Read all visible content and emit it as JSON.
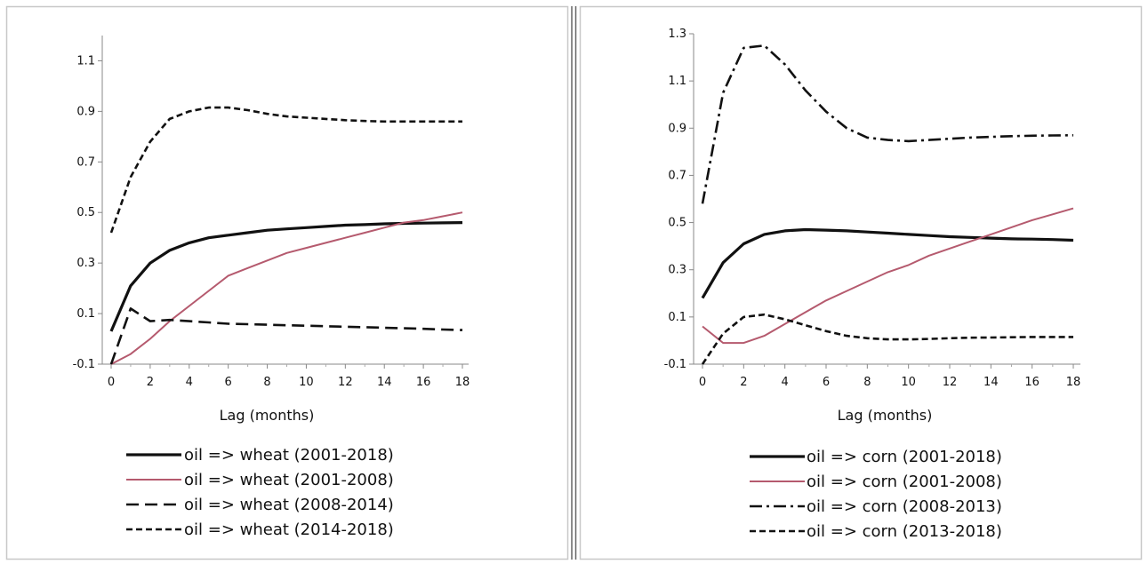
{
  "chart_data": [
    {
      "type": "line",
      "xlabel": "Lag (months)",
      "ylabel": "",
      "xlim": [
        0,
        18
      ],
      "ylim": [
        -0.1,
        1.2
      ],
      "xticks": [
        "0",
        "2",
        "4",
        "6",
        "8",
        "10",
        "12",
        "14",
        "16",
        "18"
      ],
      "yticks": [
        "-0.1",
        "0.1",
        "0.3",
        "0.5",
        "0.7",
        "0.9",
        "1.1"
      ],
      "grid": false,
      "legend_position": "bottom",
      "series": [
        {
          "name": "oil => wheat (2001-2018)",
          "color": "#111111",
          "style": "solid-thick",
          "x": [
            0,
            1,
            2,
            3,
            4,
            5,
            6,
            7,
            8,
            9,
            10,
            11,
            12,
            13,
            14,
            15,
            16,
            17,
            18
          ],
          "y": [
            0.03,
            0.21,
            0.3,
            0.35,
            0.38,
            0.4,
            0.41,
            0.42,
            0.43,
            0.435,
            0.44,
            0.445,
            0.45,
            0.452,
            0.455,
            0.457,
            0.458,
            0.459,
            0.46
          ]
        },
        {
          "name": "oil => wheat (2001-2008)",
          "color": "#b55a6e",
          "style": "solid",
          "x": [
            0,
            1,
            2,
            3,
            4,
            5,
            6,
            7,
            8,
            9,
            10,
            11,
            12,
            13,
            14,
            15,
            16,
            17,
            18
          ],
          "y": [
            -0.1,
            -0.06,
            0.0,
            0.07,
            0.13,
            0.19,
            0.25,
            0.28,
            0.31,
            0.34,
            0.36,
            0.38,
            0.4,
            0.42,
            0.44,
            0.46,
            0.47,
            0.485,
            0.5
          ]
        },
        {
          "name": "oil => wheat (2008-2014)",
          "color": "#111111",
          "style": "long-dash",
          "x": [
            0,
            1,
            2,
            3,
            4,
            5,
            6,
            7,
            8,
            9,
            10,
            11,
            12,
            13,
            14,
            15,
            16,
            17,
            18
          ],
          "y": [
            -0.1,
            0.12,
            0.07,
            0.075,
            0.07,
            0.065,
            0.06,
            0.058,
            0.056,
            0.054,
            0.052,
            0.05,
            0.048,
            0.046,
            0.044,
            0.042,
            0.04,
            0.037,
            0.035
          ]
        },
        {
          "name": "oil => wheat (2014-2018)",
          "color": "#111111",
          "style": "short-dash",
          "x": [
            0,
            1,
            2,
            3,
            4,
            5,
            6,
            7,
            8,
            9,
            10,
            11,
            12,
            13,
            14,
            15,
            16,
            17,
            18
          ],
          "y": [
            0.42,
            0.64,
            0.78,
            0.87,
            0.9,
            0.915,
            0.915,
            0.905,
            0.89,
            0.88,
            0.875,
            0.87,
            0.865,
            0.862,
            0.86,
            0.86,
            0.86,
            0.86,
            0.86
          ]
        }
      ]
    },
    {
      "type": "line",
      "xlabel": "Lag (months)",
      "ylabel": "",
      "xlim": [
        0,
        18
      ],
      "ylim": [
        -0.1,
        1.3
      ],
      "xticks": [
        "0",
        "2",
        "4",
        "6",
        "8",
        "10",
        "12",
        "14",
        "16",
        "18"
      ],
      "yticks": [
        "-0.1",
        "0.1",
        "0.3",
        "0.5",
        "0.7",
        "0.9",
        "1.1",
        "1.3"
      ],
      "grid": false,
      "legend_position": "bottom",
      "series": [
        {
          "name": "oil => corn (2001-2018)",
          "color": "#111111",
          "style": "solid-thick",
          "x": [
            0,
            1,
            2,
            3,
            4,
            5,
            6,
            7,
            8,
            9,
            10,
            11,
            12,
            13,
            14,
            15,
            16,
            17,
            18
          ],
          "y": [
            0.18,
            0.33,
            0.41,
            0.45,
            0.465,
            0.47,
            0.468,
            0.465,
            0.46,
            0.455,
            0.45,
            0.445,
            0.44,
            0.437,
            0.434,
            0.431,
            0.43,
            0.428,
            0.425
          ]
        },
        {
          "name": "oil => corn (2001-2008)",
          "color": "#b55a6e",
          "style": "solid",
          "x": [
            0,
            1,
            2,
            3,
            4,
            5,
            6,
            7,
            8,
            9,
            10,
            11,
            12,
            13,
            14,
            15,
            16,
            17,
            18
          ],
          "y": [
            0.06,
            -0.01,
            -0.01,
            0.02,
            0.07,
            0.12,
            0.17,
            0.21,
            0.25,
            0.29,
            0.32,
            0.36,
            0.39,
            0.42,
            0.45,
            0.48,
            0.51,
            0.535,
            0.56
          ]
        },
        {
          "name": "oil => corn (2008-2013)",
          "color": "#111111",
          "style": "dash-dot",
          "x": [
            0,
            1,
            2,
            3,
            4,
            5,
            6,
            7,
            8,
            9,
            10,
            11,
            12,
            13,
            14,
            15,
            16,
            17,
            18
          ],
          "y": [
            0.58,
            1.05,
            1.24,
            1.25,
            1.17,
            1.06,
            0.97,
            0.9,
            0.86,
            0.85,
            0.845,
            0.85,
            0.855,
            0.86,
            0.863,
            0.866,
            0.868,
            0.869,
            0.87
          ]
        },
        {
          "name": "oil => corn (2013-2018)",
          "color": "#111111",
          "style": "short-dash",
          "x": [
            0,
            1,
            2,
            3,
            4,
            5,
            6,
            7,
            8,
            9,
            10,
            11,
            12,
            13,
            14,
            15,
            16,
            17,
            18
          ],
          "y": [
            -0.1,
            0.03,
            0.1,
            0.11,
            0.09,
            0.065,
            0.04,
            0.02,
            0.01,
            0.005,
            0.005,
            0.007,
            0.01,
            0.012,
            0.013,
            0.014,
            0.015,
            0.015,
            0.015
          ]
        }
      ]
    }
  ]
}
